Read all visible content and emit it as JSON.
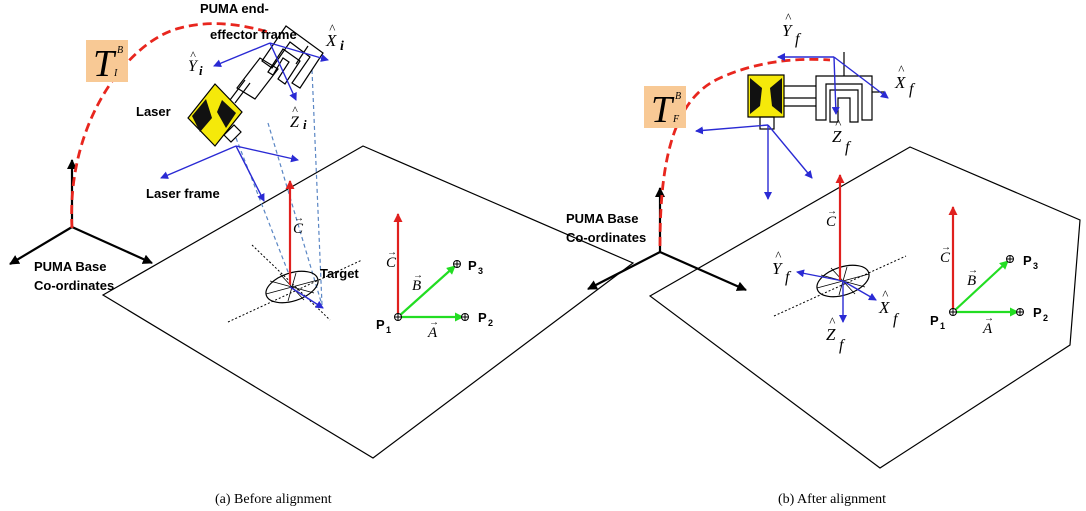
{
  "panels": [
    {
      "caption": "(a) Before alignment",
      "labels": {
        "end_effector_line1": "PUMA end-",
        "end_effector_line2": "effector frame",
        "laser": "Laser",
        "laser_frame": "Laser frame",
        "base_line1": "PUMA Base",
        "base_line2": "Co-ordinates",
        "target": "Target",
        "transform": "T",
        "transform_sup": "B",
        "transform_sub": "I",
        "x_hat": "X",
        "x_sub": "i",
        "y_hat": "Y",
        "y_sub": "i",
        "z_hat": "Z",
        "z_sub": "i",
        "vec_c_mid": "C",
        "vec_c": "C",
        "vec_b": "B",
        "vec_a": "A",
        "p1": "P",
        "p1_sub": "1",
        "p2": "P",
        "p2_sub": "2",
        "p3": "P",
        "p3_sub": "3"
      }
    },
    {
      "caption": "(b) After alignment",
      "labels": {
        "base_line1": "PUMA Base",
        "base_line2": "Co-ordinates",
        "transform": "T",
        "transform_sup": "B",
        "transform_sub": "F",
        "x_hat": "X",
        "x_sub": "f",
        "y_hat": "Y",
        "y_sub": "f",
        "z_hat": "Z",
        "z_sub": "f",
        "t_x_hat": "X",
        "t_x_sub": "f",
        "t_y_hat": "Y",
        "t_y_sub": "f",
        "t_z_hat": "Z",
        "t_z_sub": "f",
        "vec_c_mid": "C",
        "vec_c": "C",
        "vec_b": "B",
        "vec_a": "A",
        "p1": "P",
        "p1_sub": "1",
        "p2": "P",
        "p2_sub": "2",
        "p3": "P",
        "p3_sub": "3"
      }
    }
  ],
  "colors": {
    "red_vector": "#e0201e",
    "blue_vector": "#2a2ad4",
    "green_vector": "#22dd22",
    "trajectory": "#e8261e",
    "transform_bg": "#f8c995",
    "laser_yellow": "#f5e90a",
    "dashed_beam": "#5a86c4"
  }
}
